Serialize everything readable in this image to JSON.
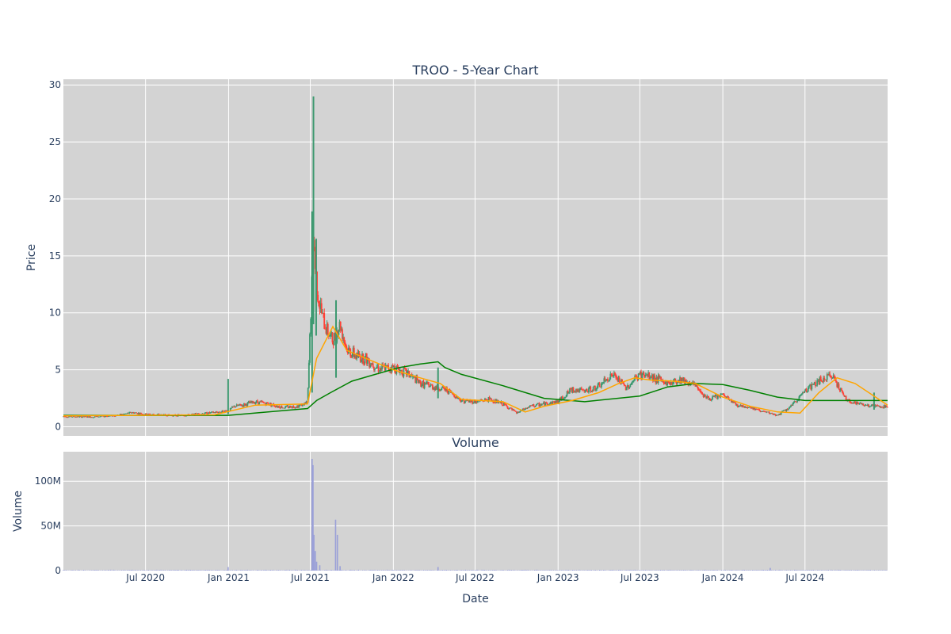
{
  "chart_data": [
    {
      "type": "candlestick",
      "title": "TROO - 5-Year Chart",
      "ylabel": "Price",
      "ylim": [
        -0.8,
        30.5
      ],
      "xlim": [
        "2020-01-01",
        "2024-12-31"
      ],
      "y_ticks": [
        "0",
        "5",
        "10",
        "15",
        "20",
        "25",
        "30"
      ],
      "grid": true,
      "colors": {
        "up": "#3d9970",
        "down": "#ff4136",
        "ma_short": "#ffa500",
        "ma_long": "#008000",
        "plot_bg": "#d3d3d3"
      },
      "series": [
        {
          "type": "ohlc",
          "points": [
            {
              "date": "2020-01-05",
              "close": 0.9
            },
            {
              "date": "2020-02-01",
              "close": 0.88
            },
            {
              "date": "2020-03-01",
              "close": 0.86
            },
            {
              "date": "2020-04-01",
              "close": 0.92
            },
            {
              "date": "2020-05-01",
              "close": 1.0
            },
            {
              "date": "2020-06-01",
              "close": 1.25
            },
            {
              "date": "2020-07-01",
              "close": 1.1
            },
            {
              "date": "2020-08-01",
              "close": 1.05
            },
            {
              "date": "2020-09-01",
              "close": 1.0
            },
            {
              "date": "2020-10-01",
              "close": 1.0
            },
            {
              "date": "2020-11-01",
              "close": 1.15
            },
            {
              "date": "2020-12-01",
              "close": 1.25
            },
            {
              "date": "2020-12-31",
              "close": 1.4
            },
            {
              "date": "2021-01-15",
              "close": 1.8
            },
            {
              "date": "2021-02-01",
              "close": 1.9
            },
            {
              "date": "2021-03-01",
              "close": 2.2
            },
            {
              "date": "2021-04-01",
              "close": 2.0
            },
            {
              "date": "2021-05-01",
              "close": 1.7
            },
            {
              "date": "2021-06-01",
              "close": 1.8
            },
            {
              "date": "2021-06-25",
              "close": 2.1
            },
            {
              "date": "2021-07-08",
              "close": 17.0
            },
            {
              "date": "2021-07-12",
              "close": 14.0
            },
            {
              "date": "2021-07-20",
              "close": 11.0
            },
            {
              "date": "2021-08-01",
              "close": 9.0
            },
            {
              "date": "2021-08-20",
              "close": 7.5
            },
            {
              "date": "2021-09-05",
              "close": 9.0
            },
            {
              "date": "2021-09-20",
              "close": 6.8
            },
            {
              "date": "2021-10-10",
              "close": 6.2
            },
            {
              "date": "2021-11-01",
              "close": 6.0
            },
            {
              "date": "2021-12-01",
              "close": 5.1
            },
            {
              "date": "2022-01-01",
              "close": 5.2
            },
            {
              "date": "2022-02-01",
              "close": 4.7
            },
            {
              "date": "2022-03-01",
              "close": 3.8
            },
            {
              "date": "2022-04-01",
              "close": 3.5
            },
            {
              "date": "2022-05-01",
              "close": 3.2
            },
            {
              "date": "2022-06-01",
              "close": 2.3
            },
            {
              "date": "2022-07-01",
              "close": 2.2
            },
            {
              "date": "2022-08-01",
              "close": 2.4
            },
            {
              "date": "2022-09-01",
              "close": 2.0
            },
            {
              "date": "2022-10-01",
              "close": 1.2
            },
            {
              "date": "2022-11-01",
              "close": 1.8
            },
            {
              "date": "2022-12-01",
              "close": 2.0
            },
            {
              "date": "2023-01-01",
              "close": 2.2
            },
            {
              "date": "2023-02-01",
              "close": 3.3
            },
            {
              "date": "2023-03-01",
              "close": 3.1
            },
            {
              "date": "2023-04-01",
              "close": 3.5
            },
            {
              "date": "2023-05-01",
              "close": 4.6
            },
            {
              "date": "2023-06-01",
              "close": 3.4
            },
            {
              "date": "2023-07-01",
              "close": 4.6
            },
            {
              "date": "2023-08-01",
              "close": 4.3
            },
            {
              "date": "2023-09-01",
              "close": 3.8
            },
            {
              "date": "2023-10-01",
              "close": 4.2
            },
            {
              "date": "2023-11-01",
              "close": 3.6
            },
            {
              "date": "2023-12-01",
              "close": 2.4
            },
            {
              "date": "2024-01-01",
              "close": 2.8
            },
            {
              "date": "2024-02-01",
              "close": 1.9
            },
            {
              "date": "2024-03-01",
              "close": 1.7
            },
            {
              "date": "2024-04-01",
              "close": 1.3
            },
            {
              "date": "2024-05-01",
              "close": 1.0
            },
            {
              "date": "2024-06-01",
              "close": 1.8
            },
            {
              "date": "2024-07-01",
              "close": 3.2
            },
            {
              "date": "2024-08-01",
              "close": 4.0
            },
            {
              "date": "2024-09-01",
              "close": 4.5
            },
            {
              "date": "2024-10-01",
              "close": 2.3
            },
            {
              "date": "2024-11-01",
              "close": 2.0
            },
            {
              "date": "2024-12-01",
              "close": 1.8
            },
            {
              "date": "2024-12-31",
              "close": 1.7
            }
          ],
          "spikes": [
            {
              "date": "2020-12-31",
              "high": 4.2,
              "low": 1.1
            },
            {
              "date": "2021-07-08",
              "high": 29.0,
              "low": 9.0
            },
            {
              "date": "2021-07-05",
              "high": 18.9,
              "low": 3.0
            },
            {
              "date": "2021-07-14",
              "high": 16.5,
              "low": 8.0
            },
            {
              "date": "2021-08-27",
              "high": 11.1,
              "low": 4.3
            },
            {
              "date": "2022-04-10",
              "high": 5.2,
              "low": 2.5
            },
            {
              "date": "2024-12-01",
              "high": 3.0,
              "low": 1.5
            }
          ]
        },
        {
          "type": "line",
          "role": "ma_short",
          "x": [
            "2020-01-01",
            "2020-06-01",
            "2020-12-01",
            "2021-03-01",
            "2021-06-25",
            "2021-07-15",
            "2021-08-20",
            "2021-09-20",
            "2021-11-01",
            "2022-01-01",
            "2022-03-01",
            "2022-04-15",
            "2022-06-01",
            "2022-09-01",
            "2022-10-20",
            "2022-12-01",
            "2023-02-01",
            "2023-04-01",
            "2023-05-15",
            "2023-06-20",
            "2023-07-25",
            "2023-09-15",
            "2023-11-01",
            "2024-01-01",
            "2024-03-01",
            "2024-05-01",
            "2024-06-20",
            "2024-08-01",
            "2024-09-10",
            "2024-10-20",
            "2024-12-31"
          ],
          "y": [
            0.95,
            1.0,
            1.05,
            1.9,
            2.0,
            6.0,
            8.8,
            6.7,
            6.0,
            5.0,
            4.3,
            3.8,
            2.4,
            2.2,
            1.3,
            1.8,
            2.3,
            3.0,
            3.8,
            4.3,
            4.1,
            4.0,
            3.8,
            2.6,
            1.8,
            1.3,
            1.2,
            3.0,
            4.3,
            3.8,
            1.9
          ]
        },
        {
          "type": "line",
          "role": "ma_long",
          "x": [
            "2020-01-01",
            "2020-12-31",
            "2021-06-25",
            "2021-07-15",
            "2021-08-15",
            "2021-10-01",
            "2021-12-01",
            "2022-01-15",
            "2022-03-01",
            "2022-04-10",
            "2022-04-25",
            "2022-06-01",
            "2022-09-01",
            "2022-12-01",
            "2023-03-01",
            "2023-07-01",
            "2023-09-01",
            "2023-11-01",
            "2024-01-01",
            "2024-03-01",
            "2024-05-01",
            "2024-07-01",
            "2024-10-01",
            "2024-12-31"
          ],
          "y": [
            1.0,
            1.0,
            1.6,
            2.3,
            3.0,
            4.0,
            4.7,
            5.2,
            5.5,
            5.7,
            5.2,
            4.6,
            3.6,
            2.5,
            2.2,
            2.7,
            3.5,
            3.8,
            3.7,
            3.2,
            2.6,
            2.3,
            2.3,
            2.3
          ]
        }
      ]
    },
    {
      "type": "bar",
      "title": "Volume",
      "xlabel": "Date",
      "ylabel": "Volume",
      "ylim": [
        0,
        133000000
      ],
      "y_ticks": [
        {
          "value": 0,
          "label": "0"
        },
        {
          "value": 50000000,
          "label": "50M"
        },
        {
          "value": 100000000,
          "label": "100M"
        }
      ],
      "x_ticks": [
        {
          "date": "2020-07-01",
          "label": "Jul 2020"
        },
        {
          "date": "2021-01-01",
          "label": "Jan 2021"
        },
        {
          "date": "2021-07-01",
          "label": "Jul 2021"
        },
        {
          "date": "2022-01-01",
          "label": "Jan 2022"
        },
        {
          "date": "2022-07-01",
          "label": "Jul 2022"
        },
        {
          "date": "2023-01-01",
          "label": "Jan 2023"
        },
        {
          "date": "2023-07-01",
          "label": "Jul 2023"
        },
        {
          "date": "2024-01-01",
          "label": "Jan 2024"
        },
        {
          "date": "2024-07-01",
          "label": "Jul 2024"
        }
      ],
      "bar_color": "#9aa0d8",
      "values": [
        {
          "date": "2021-07-05",
          "value": 125000000
        },
        {
          "date": "2021-07-07",
          "value": 118000000
        },
        {
          "date": "2021-07-09",
          "value": 40000000
        },
        {
          "date": "2021-07-12",
          "value": 22000000
        },
        {
          "date": "2021-07-15",
          "value": 10000000
        },
        {
          "date": "2021-07-22",
          "value": 6000000
        },
        {
          "date": "2021-08-26",
          "value": 57000000
        },
        {
          "date": "2021-08-30",
          "value": 40000000
        },
        {
          "date": "2021-09-05",
          "value": 5000000
        },
        {
          "date": "2020-12-31",
          "value": 4000000
        },
        {
          "date": "2022-04-10",
          "value": 4000000
        },
        {
          "date": "2024-04-15",
          "value": 3000000
        }
      ]
    }
  ]
}
